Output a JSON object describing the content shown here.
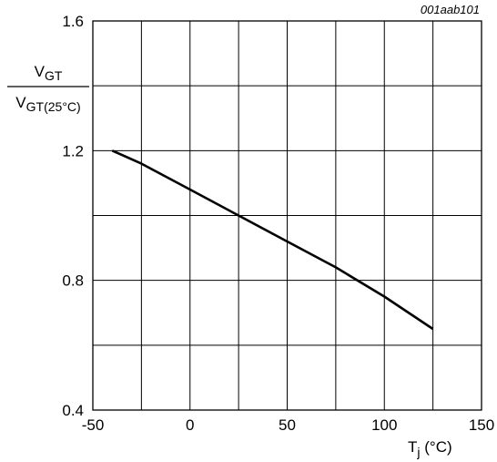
{
  "figure_id": "001aab101",
  "chart_data": {
    "type": "line",
    "xlim": [
      -50,
      150
    ],
    "ylim": [
      0.4,
      1.6
    ],
    "x_gridlines": [
      -50,
      -25,
      0,
      25,
      50,
      75,
      100,
      125,
      150
    ],
    "y_gridlines": [
      0.4,
      0.6,
      0.8,
      1.0,
      1.2,
      1.4,
      1.6
    ],
    "x_ticks": [
      {
        "value": -50,
        "label": "-50"
      },
      {
        "value": 0,
        "label": "0"
      },
      {
        "value": 50,
        "label": "50"
      },
      {
        "value": 100,
        "label": "100"
      },
      {
        "value": 150,
        "label": "150"
      }
    ],
    "y_ticks": [
      {
        "value": 0.4,
        "label": "0.4"
      },
      {
        "value": 0.8,
        "label": "0.8"
      },
      {
        "value": 1.2,
        "label": "1.2"
      },
      {
        "value": 1.6,
        "label": "1.6"
      }
    ],
    "xlabel": {
      "main": "T",
      "sub": "j",
      "unit": " (°C)"
    },
    "ylabel": {
      "numerator": {
        "main": "V",
        "sub": "GT"
      },
      "denominator": {
        "main": "V",
        "sub": "GT(25°C)"
      }
    },
    "grid": true,
    "series": [
      {
        "x": [
          -40,
          -25,
          0,
          25,
          50,
          75,
          100,
          125
        ],
        "y": [
          1.2,
          1.16,
          1.08,
          1.0,
          0.92,
          0.84,
          0.75,
          0.65
        ]
      }
    ]
  }
}
